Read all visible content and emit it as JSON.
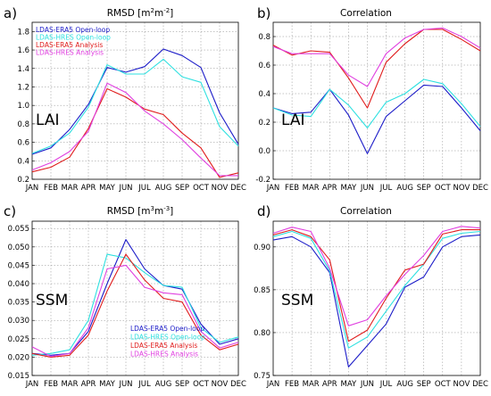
{
  "chart_data": [
    {
      "type": "line",
      "letter": "a)",
      "title_main": "RMSD [m",
      "title_sup1": "2",
      "title_mid": "m",
      "title_sup2": "-2",
      "title_end": "]",
      "panel_label": "LAI",
      "categories": [
        "JAN",
        "FEB",
        "MAR",
        "APR",
        "MAY",
        "JUN",
        "JUL",
        "AUG",
        "SEP",
        "OCT",
        "NOV",
        "DEC"
      ],
      "yticks": [
        "0.2",
        "0.4",
        "0.6",
        "0.8",
        "1.0",
        "1.2",
        "1.4",
        "1.6",
        "1.8"
      ],
      "ylim": [
        0.2,
        1.9
      ],
      "grid": true,
      "legend": "upper-left",
      "series": [
        {
          "name": "LDAS-ERA5 Open-loop",
          "color": "#1c1cc8",
          "values": [
            0.47,
            0.54,
            0.74,
            1.01,
            1.41,
            1.36,
            1.42,
            1.61,
            1.54,
            1.41,
            0.92,
            0.58
          ]
        },
        {
          "name": "LDAS-HRES Open-loop",
          "color": "#2ee0e0",
          "values": [
            0.48,
            0.56,
            0.7,
            0.98,
            1.44,
            1.34,
            1.34,
            1.5,
            1.31,
            1.25,
            0.77,
            0.56
          ]
        },
        {
          "name": "LDAS-ERA5 Analysis",
          "color": "#e01c1c",
          "values": [
            0.28,
            0.33,
            0.44,
            0.75,
            1.18,
            1.09,
            0.96,
            0.9,
            0.7,
            0.54,
            0.22,
            0.27
          ]
        },
        {
          "name": "LDAS-HRES Analysis",
          "color": "#e040e0",
          "values": [
            0.3,
            0.38,
            0.5,
            0.72,
            1.24,
            1.14,
            0.94,
            0.8,
            0.63,
            0.43,
            0.24,
            0.24
          ]
        }
      ]
    },
    {
      "type": "line",
      "letter": "b)",
      "title": "Correlation",
      "panel_label": "LAI",
      "categories": [
        "JAN",
        "FEB",
        "MAR",
        "APR",
        "MAY",
        "JUN",
        "JUL",
        "AUG",
        "SEP",
        "OCT",
        "NOV",
        "DEC"
      ],
      "yticks": [
        "-0.2",
        "0.0",
        "0.2",
        "0.4",
        "0.6",
        "0.8"
      ],
      "ylim": [
        -0.2,
        0.9
      ],
      "grid": true,
      "series": [
        {
          "name": "LDAS-ERA5 Open-loop",
          "color": "#1c1cc8",
          "values": [
            0.3,
            0.26,
            0.27,
            0.43,
            0.25,
            -0.02,
            0.24,
            0.35,
            0.46,
            0.45,
            0.3,
            0.14
          ]
        },
        {
          "name": "LDAS-HRES Open-loop",
          "color": "#2ee0e0",
          "values": [
            0.3,
            0.25,
            0.24,
            0.43,
            0.32,
            0.16,
            0.34,
            0.4,
            0.5,
            0.47,
            0.33,
            0.17
          ]
        },
        {
          "name": "LDAS-ERA5 Analysis",
          "color": "#e01c1c",
          "values": [
            0.74,
            0.67,
            0.7,
            0.69,
            0.51,
            0.3,
            0.62,
            0.75,
            0.85,
            0.85,
            0.78,
            0.7
          ]
        },
        {
          "name": "LDAS-HRES Analysis",
          "color": "#e040e0",
          "values": [
            0.73,
            0.68,
            0.68,
            0.68,
            0.53,
            0.45,
            0.68,
            0.79,
            0.85,
            0.86,
            0.8,
            0.72
          ]
        }
      ]
    },
    {
      "type": "line",
      "letter": "c)",
      "title_main": "RMSD [m",
      "title_sup1": "3",
      "title_mid": "m",
      "title_sup2": "-3",
      "title_end": "]",
      "panel_label": "SSM",
      "categories": [
        "JAN",
        "FEB",
        "MAR",
        "APR",
        "MAY",
        "JUN",
        "JUL",
        "AUG",
        "SEP",
        "OCT",
        "NOV",
        "DEC"
      ],
      "yticks": [
        "0.015",
        "0.020",
        "0.025",
        "0.030",
        "0.035",
        "0.040",
        "0.045",
        "0.050",
        "0.055"
      ],
      "ylim": [
        0.015,
        0.057
      ],
      "grid": true,
      "legend": "lower-center",
      "series": [
        {
          "name": "LDAS-ERA5 Open-loop",
          "color": "#1c1cc8",
          "values": [
            0.021,
            0.0205,
            0.021,
            0.027,
            0.04,
            0.052,
            0.044,
            0.0395,
            0.0385,
            0.029,
            0.0235,
            0.025
          ]
        },
        {
          "name": "LDAS-HRES Open-loop",
          "color": "#2ee0e0",
          "values": [
            0.0205,
            0.021,
            0.022,
            0.03,
            0.048,
            0.047,
            0.043,
            0.0395,
            0.039,
            0.028,
            0.024,
            0.0255
          ]
        },
        {
          "name": "LDAS-ERA5 Analysis",
          "color": "#e01c1c",
          "values": [
            0.021,
            0.02,
            0.0205,
            0.026,
            0.038,
            0.048,
            0.041,
            0.036,
            0.035,
            0.026,
            0.022,
            0.0235
          ]
        },
        {
          "name": "LDAS-HRES Analysis",
          "color": "#e040e0",
          "values": [
            0.0228,
            0.0202,
            0.021,
            0.028,
            0.044,
            0.045,
            0.039,
            0.0375,
            0.037,
            0.027,
            0.0225,
            0.024
          ]
        }
      ]
    },
    {
      "type": "line",
      "letter": "d)",
      "title": "Correlation",
      "panel_label": "SSM",
      "categories": [
        "JAN",
        "FEB",
        "MAR",
        "APR",
        "MAY",
        "JUN",
        "JUL",
        "AUG",
        "SEP",
        "OCT",
        "NOV",
        "DEC"
      ],
      "yticks": [
        "0.75",
        "0.80",
        "0.85",
        "0.90"
      ],
      "ylim": [
        0.75,
        0.93
      ],
      "grid": true,
      "series": [
        {
          "name": "LDAS-ERA5 Open-loop",
          "color": "#1c1cc8",
          "values": [
            0.908,
            0.912,
            0.9,
            0.87,
            0.76,
            0.785,
            0.81,
            0.853,
            0.865,
            0.9,
            0.912,
            0.914
          ]
        },
        {
          "name": "LDAS-HRES Open-loop",
          "color": "#2ee0e0",
          "values": [
            0.912,
            0.918,
            0.91,
            0.872,
            0.782,
            0.795,
            0.825,
            0.855,
            0.88,
            0.91,
            0.916,
            0.918
          ]
        },
        {
          "name": "LDAS-ERA5 Analysis",
          "color": "#e01c1c",
          "values": [
            0.914,
            0.92,
            0.912,
            0.885,
            0.79,
            0.803,
            0.84,
            0.873,
            0.88,
            0.915,
            0.92,
            0.92
          ]
        },
        {
          "name": "LDAS-HRES Analysis",
          "color": "#e040e0",
          "values": [
            0.916,
            0.923,
            0.918,
            0.875,
            0.808,
            0.815,
            0.843,
            0.868,
            0.89,
            0.918,
            0.924,
            0.922
          ]
        }
      ]
    }
  ]
}
